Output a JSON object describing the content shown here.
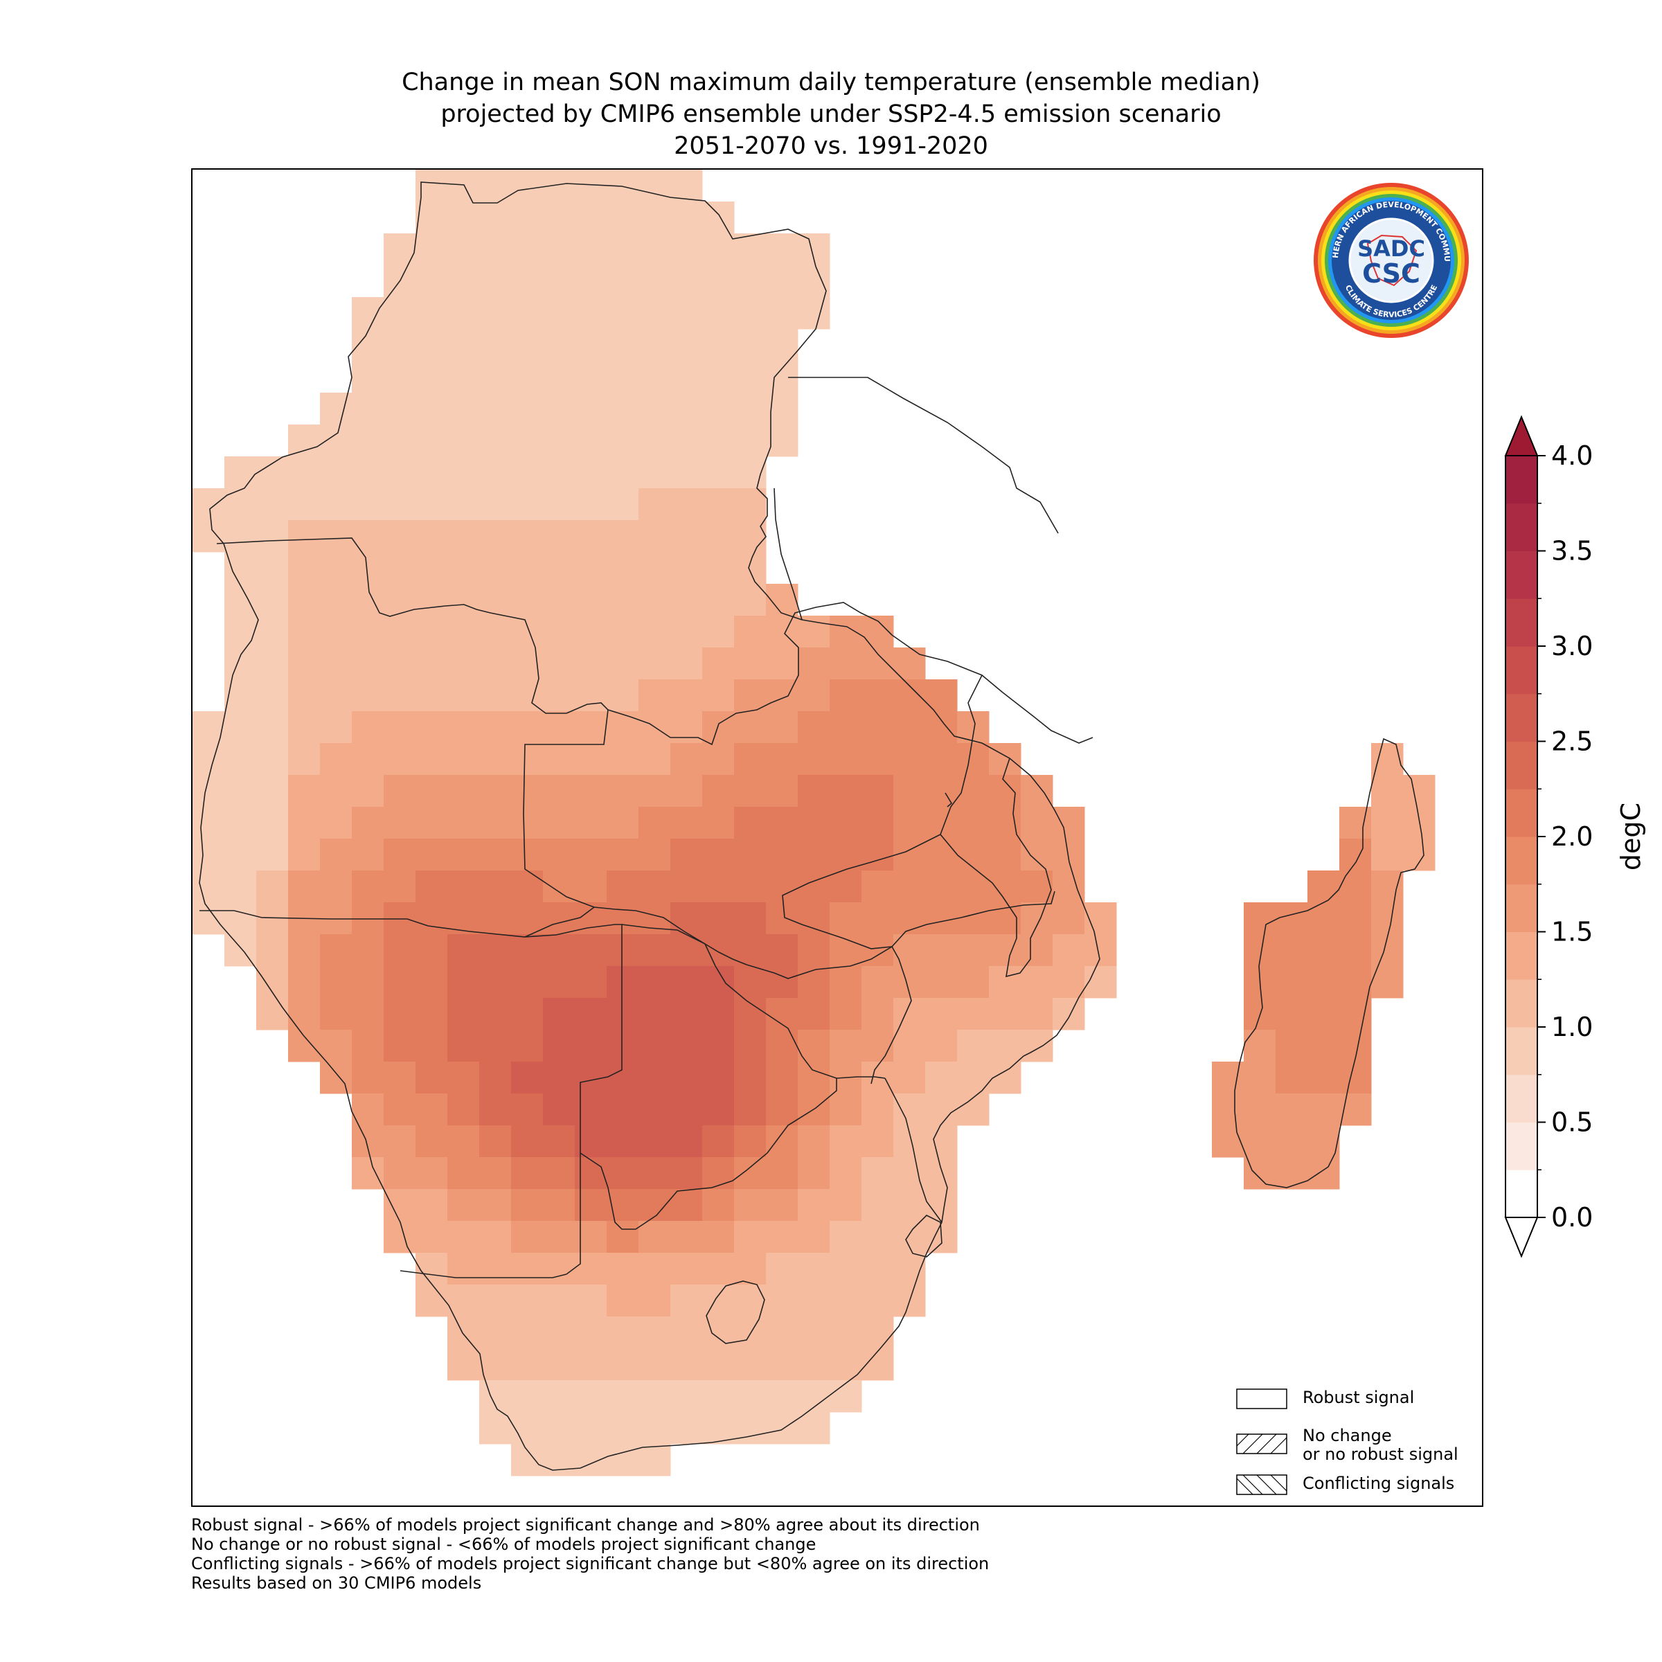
{
  "title": {
    "line1": "Change in mean SON maximum daily temperature (ensemble median)",
    "line2": "projected by CMIP6 ensemble under SSP2-4.5 emission scenario",
    "line3": "2051-2070 vs. 1991-2020"
  },
  "map": {
    "region": "Southern Africa (SADC)",
    "palette": "white-to-dark-red sequential",
    "field_value_range": [
      0.8,
      2.7
    ],
    "hottest_area": "interior Botswana / Namibia / Zambia",
    "coolest_area": "northern DR Congo and eastern Madagascar"
  },
  "logo": {
    "top_text": "SOUTHERN AFRICAN DEVELOPMENT COMMUNITY",
    "bottom_text": "CLIMATE SERVICES CENTRE",
    "mark_top": "SADC",
    "mark_bottom": "CSC",
    "ring_colors": [
      "#e8452c",
      "#f5a623",
      "#f7e017",
      "#4caf50",
      "#2196f3"
    ]
  },
  "colorbar": {
    "label": "degC",
    "min": 0.0,
    "max": 4.0,
    "extend": "both",
    "ticks": [
      "0.0",
      "0.5",
      "1.0",
      "1.5",
      "2.0",
      "2.5",
      "3.0",
      "3.5",
      "4.0"
    ],
    "colors": [
      "#ffffff",
      "#fae8e1",
      "#f9dccd",
      "#f8cdb6",
      "#f6bca0",
      "#f3ab8a",
      "#ef9a77",
      "#ea8b68",
      "#e27a5c",
      "#d96b54",
      "#d15d50",
      "#c84f4c",
      "#bf414a",
      "#b53447",
      "#ab2a43",
      "#a0213f"
    ]
  },
  "legend": {
    "items": [
      {
        "label": "Robust signal",
        "hatch": "none"
      },
      {
        "label": "No change\nor no robust signal",
        "hatch": "forward"
      },
      {
        "label": "Conflicting signals",
        "hatch": "back"
      }
    ]
  },
  "notes": [
    "Robust signal - >66% of models project significant change and >80% agree about its direction",
    "No change or no robust signal - <66% of models project significant change",
    "Conflicting signals - >66% of models project significant change but <80% agree on its direction",
    "Results based on 30 CMIP6 models"
  ]
}
